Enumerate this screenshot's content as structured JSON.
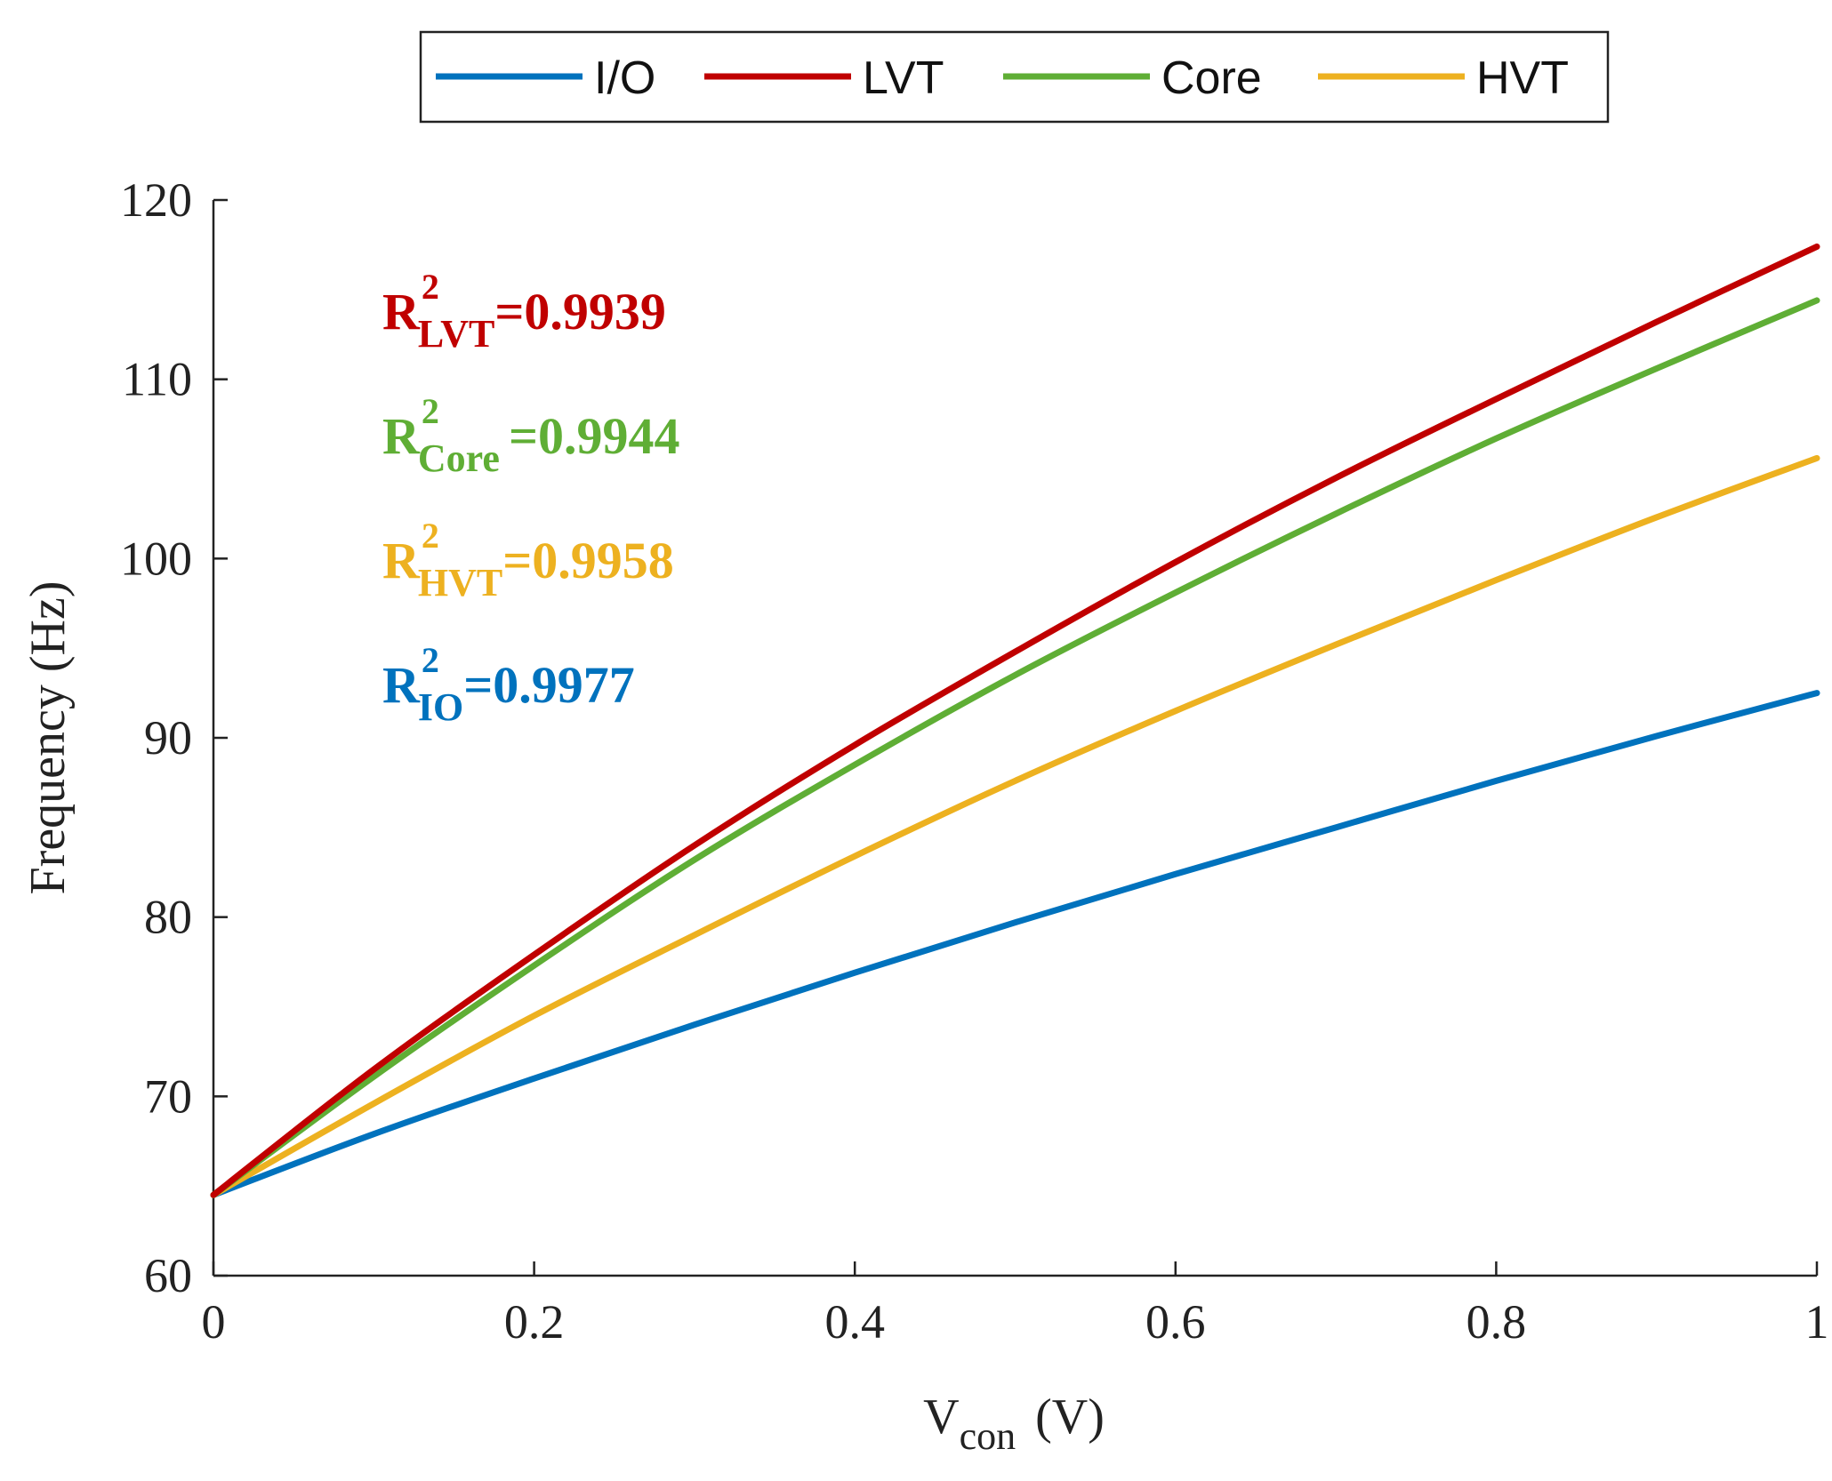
{
  "chart_data": {
    "type": "line",
    "title": "",
    "xlabel": {
      "main": "V",
      "sub": "con",
      "unit": "(V)"
    },
    "ylabel": "Frequency (Hz)",
    "xlim": [
      0,
      1
    ],
    "ylim": [
      60,
      120
    ],
    "xticks": [
      0,
      0.2,
      0.4,
      0.6,
      0.8,
      1
    ],
    "xtick_labels": [
      "0",
      "0.2",
      "0.4",
      "0.6",
      "0.8",
      "1"
    ],
    "yticks": [
      60,
      70,
      80,
      90,
      100,
      110,
      120
    ],
    "ytick_labels": [
      "60",
      "70",
      "80",
      "90",
      "100",
      "110",
      "120"
    ],
    "grid": false,
    "legend_position": "top",
    "x": [
      0,
      0.1,
      0.2,
      0.3,
      0.4,
      0.5,
      0.6,
      0.7,
      0.8,
      0.9,
      1.0
    ],
    "series": [
      {
        "name": "I/O",
        "color": "#0072bd",
        "values": [
          64.5,
          67.9,
          71.0,
          74.0,
          76.9,
          79.7,
          82.4,
          85.0,
          87.6,
          90.1,
          92.5
        ]
      },
      {
        "name": "LVT",
        "color": "#c00000",
        "values": [
          64.5,
          71.5,
          77.9,
          84.0,
          89.6,
          94.8,
          99.8,
          104.5,
          108.9,
          113.2,
          117.4
        ]
      },
      {
        "name": "Core",
        "color": "#5fae35",
        "values": [
          64.5,
          71.1,
          77.3,
          83.2,
          88.5,
          93.5,
          98.1,
          102.5,
          106.7,
          110.6,
          114.4
        ]
      },
      {
        "name": "HVT",
        "color": "#edb120",
        "values": [
          64.5,
          69.6,
          74.5,
          79.0,
          83.4,
          87.6,
          91.5,
          95.2,
          98.8,
          102.3,
          105.6
        ]
      }
    ],
    "annotations": [
      {
        "base": "R",
        "sup": "2",
        "sub": "LVT",
        "value": "=0.9939",
        "color": "#c00000"
      },
      {
        "base": "R",
        "sup": "2",
        "sub": "Core",
        "value": "=0.9944",
        "color": "#5fae35"
      },
      {
        "base": "R",
        "sup": "2",
        "sub": "HVT",
        "value": "=0.9958",
        "color": "#edb120"
      },
      {
        "base": "R",
        "sup": "2",
        "sub": "IO",
        "value": "=0.9977",
        "color": "#0072bd"
      }
    ]
  }
}
